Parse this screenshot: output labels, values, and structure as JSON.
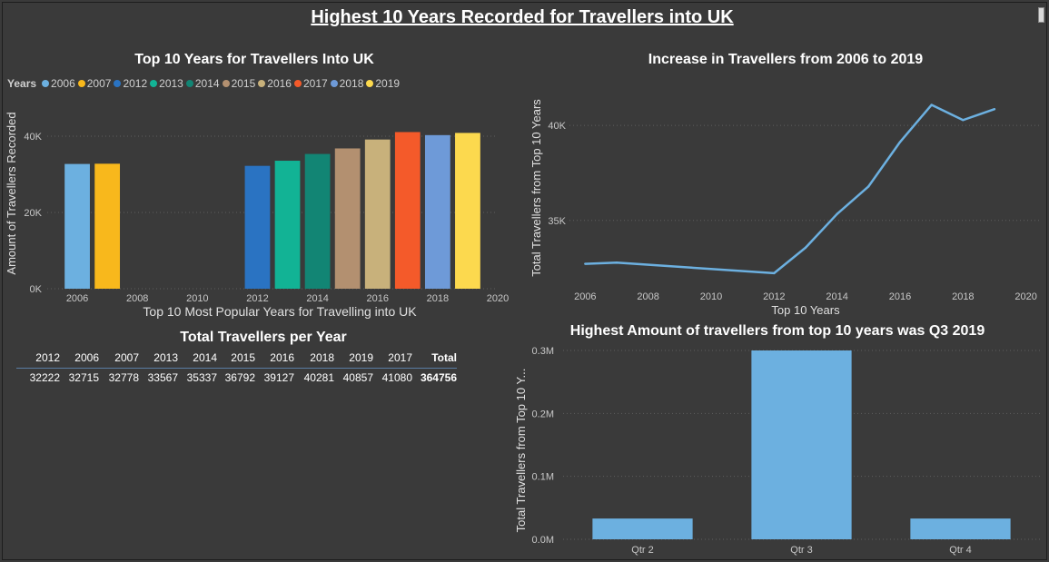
{
  "page": {
    "title": "Highest 10 Years Recorded for Travellers into UK"
  },
  "bar_visual": {
    "title": "Top 10 Years for Travellers Into UK",
    "legend_title": "Years"
  },
  "line_visual": {
    "title": "Increase in Travellers from 2006 to 2019"
  },
  "quarter_visual": {
    "title": "Highest Amount of travellers from top 10 years was Q3 2019"
  },
  "matrix": {
    "title": "Total Travellers per Year",
    "headers": [
      "2012",
      "2006",
      "2007",
      "2013",
      "2014",
      "2015",
      "2016",
      "2018",
      "2019",
      "2017",
      "Total"
    ],
    "values": [
      "32222",
      "32715",
      "32778",
      "33567",
      "35337",
      "36792",
      "39127",
      "40281",
      "40857",
      "41080",
      "364756"
    ]
  },
  "colors": {
    "background": "#3a3a3a",
    "line": "#6cb0e0",
    "quarter_bar": "#6cb0e0",
    "axis_text": "#c8c8c8",
    "gridline": "#5e5e5e"
  },
  "chart_data": [
    {
      "type": "bar",
      "title": "Top 10 Years for Travellers Into UK",
      "xlabel": "Top 10 Most Popular Years for Travelling into UK",
      "ylabel": "Amount of Travellers Recorded",
      "legend_title": "Years",
      "legend_placement": "top-left",
      "xlim": [
        2005,
        2020
      ],
      "ylim": [
        0,
        50000
      ],
      "x_ticks": [
        2006,
        2008,
        2010,
        2012,
        2014,
        2016,
        2018,
        2020
      ],
      "y_ticks": [
        0,
        20000,
        40000
      ],
      "y_tick_labels": [
        "0K",
        "20K",
        "40K"
      ],
      "grid": true,
      "series": [
        {
          "name": "2006",
          "x": 2006,
          "value": 32715,
          "color": "#6cb0e0"
        },
        {
          "name": "2007",
          "x": 2007,
          "value": 32778,
          "color": "#f8b81c"
        },
        {
          "name": "2012",
          "x": 2012,
          "value": 32222,
          "color": "#2a73c2"
        },
        {
          "name": "2013",
          "x": 2013,
          "value": 33567,
          "color": "#12b395"
        },
        {
          "name": "2014",
          "x": 2014,
          "value": 35337,
          "color": "#128574"
        },
        {
          "name": "2015",
          "x": 2015,
          "value": 36792,
          "color": "#b39070"
        },
        {
          "name": "2016",
          "x": 2016,
          "value": 39127,
          "color": "#c8b17b"
        },
        {
          "name": "2017",
          "x": 2017,
          "value": 41080,
          "color": "#f45a2a"
        },
        {
          "name": "2018",
          "x": 2018,
          "value": 40281,
          "color": "#6e9ad8"
        },
        {
          "name": "2019",
          "x": 2019,
          "value": 40857,
          "color": "#fcd94e"
        }
      ]
    },
    {
      "type": "line",
      "title": "Increase in Travellers from 2006 to 2019",
      "xlabel": "Top 10 Years",
      "ylabel": "Total Travellers from Top 10 Years",
      "xlim": [
        2005.5,
        2020.5
      ],
      "ylim": [
        31500,
        42300
      ],
      "x_ticks": [
        2006,
        2008,
        2010,
        2012,
        2014,
        2016,
        2018,
        2020
      ],
      "y_ticks": [
        35000,
        40000
      ],
      "y_tick_labels": [
        "35K",
        "40K"
      ],
      "grid": true,
      "x": [
        2006,
        2007,
        2012,
        2013,
        2014,
        2015,
        2016,
        2017,
        2018,
        2019
      ],
      "y": [
        32715,
        32778,
        32222,
        33567,
        35337,
        36792,
        39127,
        41080,
        40281,
        40857
      ]
    },
    {
      "type": "bar",
      "title": "Highest Amount of travellers from top 10 years was Q3 2019",
      "xlabel": "",
      "ylabel": "Total Travellers from Top 10 Y...",
      "categories": [
        "Qtr 2",
        "Qtr 3",
        "Qtr 4"
      ],
      "values": [
        33000,
        300000,
        33000
      ],
      "ylim": [
        0,
        300000
      ],
      "y_ticks": [
        0,
        100000,
        200000,
        300000
      ],
      "y_tick_labels": [
        "0.0M",
        "0.1M",
        "0.2M",
        "0.3M"
      ],
      "grid": true
    }
  ]
}
